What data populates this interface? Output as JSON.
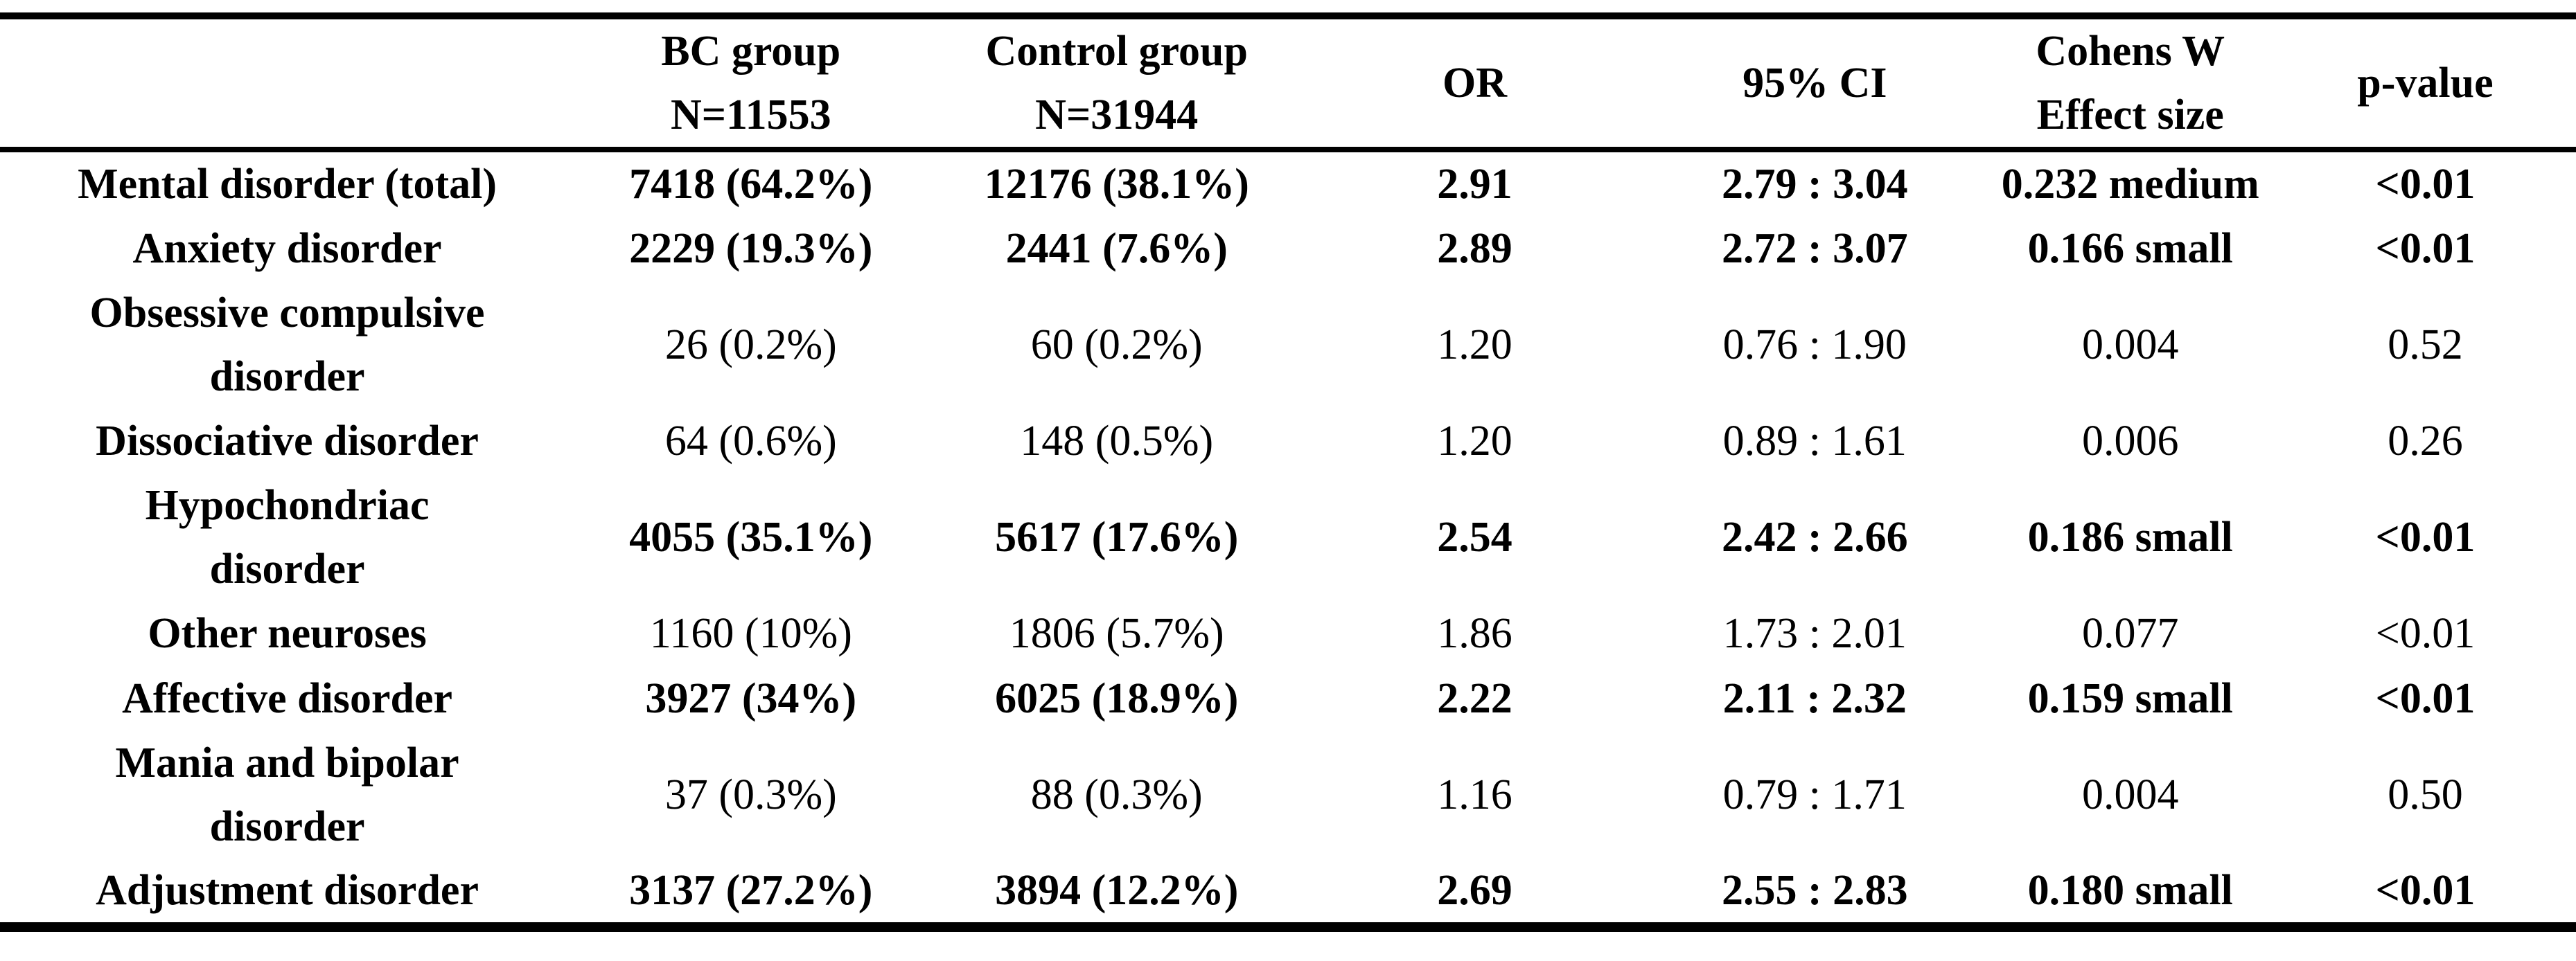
{
  "table": {
    "headers": [
      "",
      "BC group\nN=11553",
      "Control group\nN=31944",
      "OR",
      "95% CI",
      "Cohens W\nEffect size",
      "p-value"
    ],
    "rows": [
      {
        "label": "Mental disorder (total)",
        "bc_group": "7418 (64.2%)",
        "control_group": "12176 (38.1%)",
        "or": "2.91",
        "ci_95": "2.79 : 3.04",
        "effect_size": "0.232 medium",
        "p_value": "<0.01",
        "emphasis": true
      },
      {
        "label": "Anxiety disorder",
        "bc_group": "2229 (19.3%)",
        "control_group": "2441 (7.6%)",
        "or": "2.89",
        "ci_95": "2.72 : 3.07",
        "effect_size": "0.166 small",
        "p_value": "<0.01",
        "emphasis": true
      },
      {
        "label": "Obsessive compulsive\ndisorder",
        "bc_group": "26 (0.2%)",
        "control_group": "60 (0.2%)",
        "or": "1.20",
        "ci_95": "0.76 : 1.90",
        "effect_size": "0.004",
        "p_value": "0.52",
        "emphasis": false
      },
      {
        "label": "Dissociative disorder",
        "bc_group": "64 (0.6%)",
        "control_group": "148 (0.5%)",
        "or": "1.20",
        "ci_95": "0.89 : 1.61",
        "effect_size": "0.006",
        "p_value": "0.26",
        "emphasis": false
      },
      {
        "label": "Hypochondriac\ndisorder",
        "bc_group": "4055 (35.1%)",
        "control_group": "5617 (17.6%)",
        "or": "2.54",
        "ci_95": "2.42 : 2.66",
        "effect_size": "0.186 small",
        "p_value": "<0.01",
        "emphasis": true
      },
      {
        "label": "Other neuroses",
        "bc_group": "1160 (10%)",
        "control_group": "1806 (5.7%)",
        "or": "1.86",
        "ci_95": "1.73 : 2.01",
        "effect_size": "0.077",
        "p_value": "<0.01",
        "emphasis": false
      },
      {
        "label": "Affective disorder",
        "bc_group": "3927 (34%)",
        "control_group": "6025 (18.9%)",
        "or": "2.22",
        "ci_95": "2.11 : 2.32",
        "effect_size": "0.159 small",
        "p_value": "<0.01",
        "emphasis": true
      },
      {
        "label": "Mania and bipolar\ndisorder",
        "bc_group": "37 (0.3%)",
        "control_group": "88 (0.3%)",
        "or": "1.16",
        "ci_95": "0.79 : 1.71",
        "effect_size": "0.004",
        "p_value": "0.50",
        "emphasis": false
      },
      {
        "label": "Adjustment disorder",
        "bc_group": "3137 (27.2%)",
        "control_group": "3894 (12.2%)",
        "or": "2.69",
        "ci_95": "2.55 : 2.83",
        "effect_size": "0.180 small",
        "p_value": "<0.01",
        "emphasis": true
      }
    ]
  }
}
